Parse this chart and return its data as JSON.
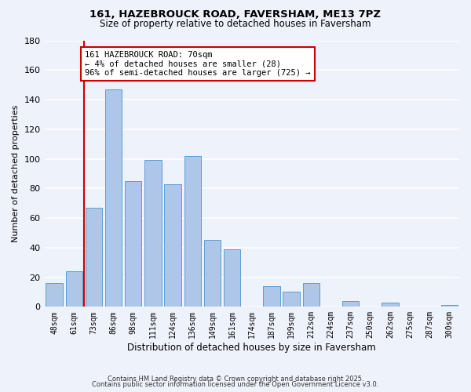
{
  "title": "161, HAZEBROUCK ROAD, FAVERSHAM, ME13 7PZ",
  "subtitle": "Size of property relative to detached houses in Faversham",
  "xlabel": "Distribution of detached houses by size in Faversham",
  "ylabel": "Number of detached properties",
  "bar_labels": [
    "48sqm",
    "61sqm",
    "73sqm",
    "86sqm",
    "98sqm",
    "111sqm",
    "124sqm",
    "136sqm",
    "149sqm",
    "161sqm",
    "174sqm",
    "187sqm",
    "199sqm",
    "212sqm",
    "224sqm",
    "237sqm",
    "250sqm",
    "262sqm",
    "275sqm",
    "287sqm",
    "300sqm"
  ],
  "bar_values": [
    16,
    24,
    67,
    147,
    85,
    99,
    83,
    102,
    45,
    39,
    0,
    14,
    10,
    16,
    0,
    4,
    0,
    3,
    0,
    0,
    1
  ],
  "bar_color": "#aec6e8",
  "bar_edge_color": "#5a9fd4",
  "vline_color": "#cc0000",
  "ylim": [
    0,
    180
  ],
  "yticks": [
    0,
    20,
    40,
    60,
    80,
    100,
    120,
    140,
    160,
    180
  ],
  "annotation_title": "161 HAZEBROUCK ROAD: 70sqm",
  "annotation_line1": "← 4% of detached houses are smaller (28)",
  "annotation_line2": "96% of semi-detached houses are larger (725) →",
  "annotation_box_color": "#ffffff",
  "annotation_box_edge": "#cc0000",
  "footer1": "Contains HM Land Registry data © Crown copyright and database right 2025.",
  "footer2": "Contains public sector information licensed under the Open Government Licence v3.0.",
  "background_color": "#eef2fb",
  "grid_color": "#ffffff"
}
